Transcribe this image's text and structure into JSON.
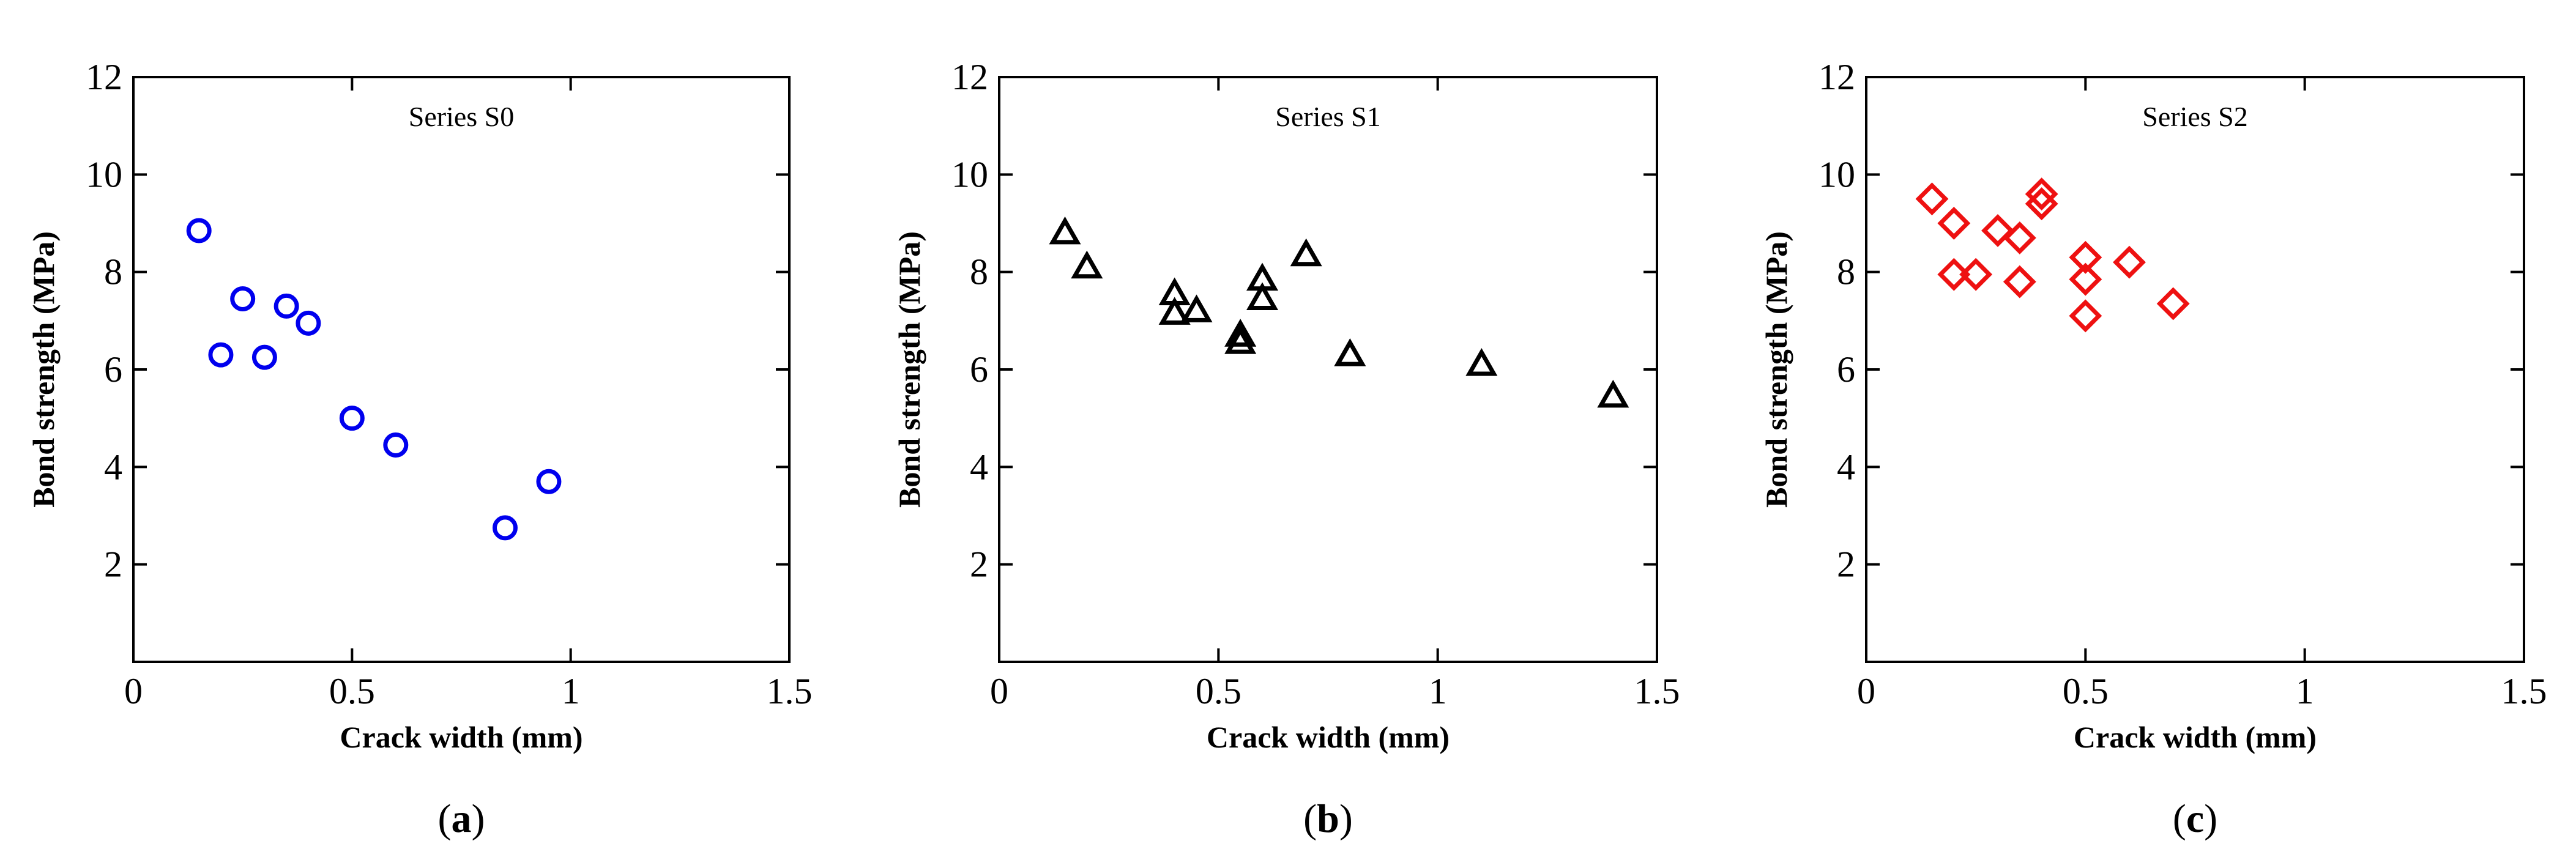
{
  "chart_data": [
    {
      "type": "scatter",
      "panel": "a",
      "caption": "(a)",
      "title": "Series S0",
      "xlabel": "Crack width (mm)",
      "ylabel": "Bond strength (MPa)",
      "xlim": [
        0,
        1.5
      ],
      "ylim": [
        0,
        12
      ],
      "xticks": [
        0,
        0.5,
        1,
        1.5
      ],
      "xtick_labels": [
        "0",
        "0.5",
        "1",
        "1.5"
      ],
      "yticks": [
        2,
        4,
        6,
        8,
        10,
        12
      ],
      "ytick_labels": [
        "2",
        "4",
        "6",
        "8",
        "10",
        "12"
      ],
      "grid": false,
      "marker": "circle",
      "color": "#0000ee",
      "x": [
        0.15,
        0.2,
        0.25,
        0.3,
        0.35,
        0.4,
        0.5,
        0.6,
        0.85,
        0.95
      ],
      "y": [
        8.85,
        6.3,
        7.45,
        6.25,
        7.3,
        6.95,
        5.0,
        4.45,
        2.75,
        3.7
      ]
    },
    {
      "type": "scatter",
      "panel": "b",
      "caption": "(b)",
      "title": "Series S1",
      "xlabel": "Crack width (mm)",
      "ylabel": "Bond strength (MPa)",
      "xlim": [
        0,
        1.5
      ],
      "ylim": [
        0,
        12
      ],
      "xticks": [
        0,
        0.5,
        1,
        1.5
      ],
      "xtick_labels": [
        "0",
        "0.5",
        "1",
        "1.5"
      ],
      "yticks": [
        2,
        4,
        6,
        8,
        10,
        12
      ],
      "ytick_labels": [
        "2",
        "4",
        "6",
        "8",
        "10",
        "12"
      ],
      "grid": false,
      "marker": "triangle",
      "color": "#000000",
      "x": [
        0.15,
        0.2,
        0.4,
        0.4,
        0.45,
        0.55,
        0.55,
        0.6,
        0.6,
        0.7,
        0.8,
        1.1,
        1.4
      ],
      "y": [
        8.8,
        8.1,
        7.55,
        7.15,
        7.2,
        6.7,
        6.55,
        7.85,
        7.45,
        8.35,
        6.3,
        6.1,
        5.45
      ]
    },
    {
      "type": "scatter",
      "panel": "c",
      "caption": "(c)",
      "title": "Series S2",
      "xlabel": "Crack width (mm)",
      "ylabel": "Bond strength (MPa)",
      "xlim": [
        0,
        1.5
      ],
      "ylim": [
        0,
        12
      ],
      "xticks": [
        0,
        0.5,
        1,
        1.5
      ],
      "xtick_labels": [
        "0",
        "0.5",
        "1",
        "1.5"
      ],
      "yticks": [
        2,
        4,
        6,
        8,
        10,
        12
      ],
      "ytick_labels": [
        "2",
        "4",
        "6",
        "8",
        "10",
        "12"
      ],
      "grid": false,
      "marker": "diamond",
      "color": "#ee1111",
      "x": [
        0.15,
        0.2,
        0.2,
        0.25,
        0.3,
        0.35,
        0.35,
        0.4,
        0.4,
        0.5,
        0.5,
        0.5,
        0.6,
        0.7
      ],
      "y": [
        9.5,
        9.0,
        7.95,
        7.95,
        8.85,
        8.7,
        7.8,
        9.6,
        9.4,
        8.3,
        7.85,
        7.1,
        8.2,
        7.35
      ]
    }
  ]
}
